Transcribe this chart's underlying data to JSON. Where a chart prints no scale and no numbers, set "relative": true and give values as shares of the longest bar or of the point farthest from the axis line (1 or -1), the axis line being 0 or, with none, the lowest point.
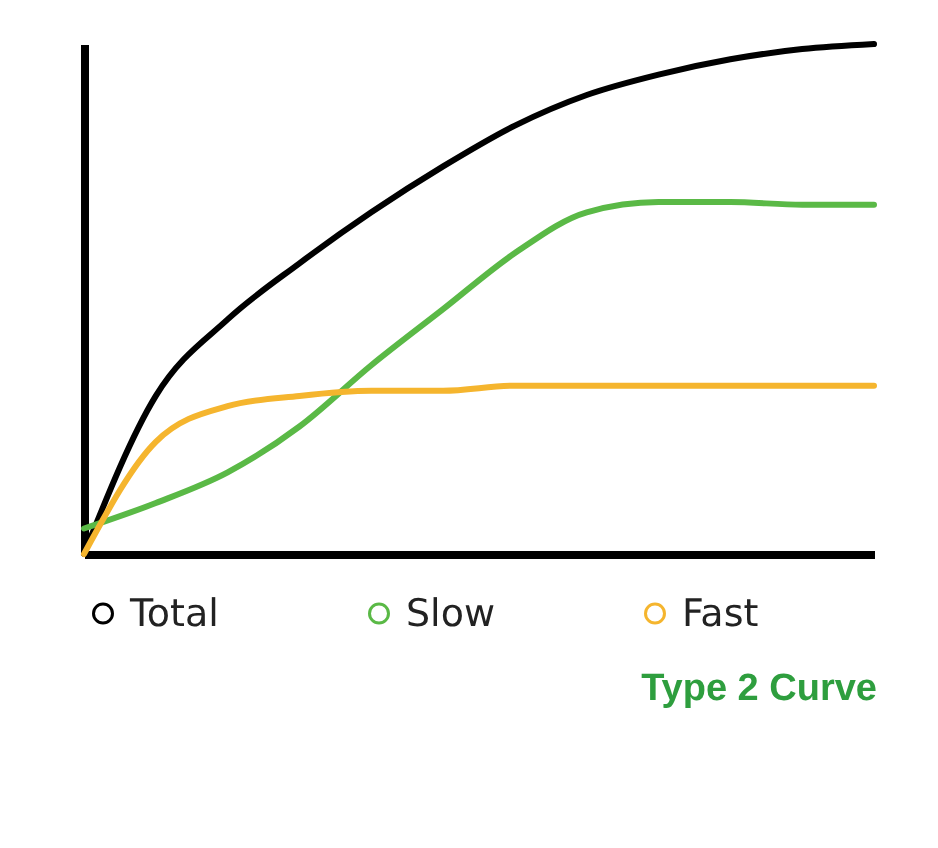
{
  "chart_data": {
    "type": "line",
    "title": "Type 2 Curve",
    "relative": true,
    "legend": "bottom",
    "marker": "none",
    "grid": false,
    "categories": [
      null,
      null,
      null,
      null,
      null,
      null,
      null,
      null,
      null,
      null,
      null,
      null
    ],
    "series": [
      {
        "name": "Total",
        "color": "#000000",
        "values": [
          0,
          0.31,
          0.46,
          0.57,
          0.67,
          0.76,
          0.84,
          0.9,
          0.94,
          0.97,
          0.99,
          1
        ]
      },
      {
        "name": "Slow",
        "color": "#5ab946",
        "values": [
          0.05,
          0.1,
          0.16,
          0.25,
          0.37,
          0.48,
          0.59,
          0.67,
          0.69,
          0.69,
          0.685,
          0.685
        ]
      },
      {
        "name": "Fast",
        "color": "#f5b52e",
        "values": [
          0,
          0.22,
          0.29,
          0.31,
          0.32,
          0.32,
          0.33,
          0.33,
          0.33,
          0.33,
          0.33,
          0.33
        ]
      }
    ]
  }
}
